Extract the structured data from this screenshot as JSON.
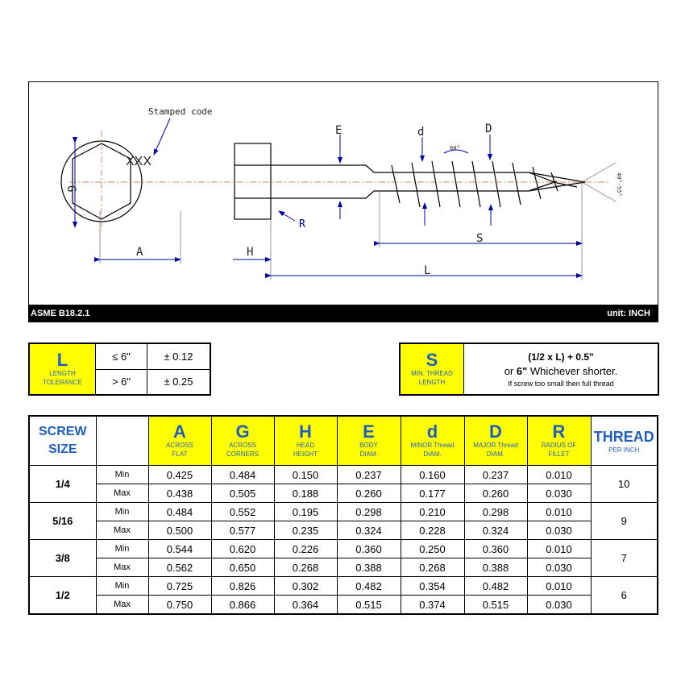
{
  "drawing": {
    "stamped_code": "Stamped code",
    "head_mark": "XXX",
    "labels": {
      "G": "G",
      "A": "A",
      "H": "H",
      "R": "R",
      "E": "E",
      "d": "d",
      "D": "D",
      "S": "S",
      "L": "L",
      "thread_angle": "60°",
      "point_angle": "40°-55°"
    },
    "standard": "ASME B18.2.1",
    "unit": "unit: INCH",
    "line_color": "#0000aa"
  },
  "length_tolerance": {
    "symbol": "L",
    "caption_1": "LENGTH",
    "caption_2": "TOLERANCE",
    "rows": [
      {
        "range": "≤ 6\"",
        "tol": "± 0.12"
      },
      {
        "range": "> 6\"",
        "tol": "± 0.25"
      }
    ]
  },
  "thread_length": {
    "symbol": "S",
    "caption_1": "MIN. THREAD",
    "caption_2": "LENGTH",
    "line1": "(1/2 x L) + 0.5\"",
    "line2_pre": "or ",
    "line2_bold": "6\"",
    "line2_post": " Whichever shorter.",
    "line3": "If screw too small then full thread"
  },
  "table": {
    "size_header_1": "SCREW",
    "size_header_2": "SIZE",
    "columns": [
      {
        "sym": "A",
        "cap1": "ACROSS",
        "cap2": "FLAT"
      },
      {
        "sym": "G",
        "cap1": "ACROSS",
        "cap2": "CORNERS"
      },
      {
        "sym": "H",
        "cap1": "HEAD",
        "cap2": "HEIGHT"
      },
      {
        "sym": "E",
        "cap1": "BODY",
        "cap2": "DIAM."
      },
      {
        "sym": "d",
        "cap1": "MINOR Thread",
        "cap2": "DIAM."
      },
      {
        "sym": "D",
        "cap1": "MAJOR Thread",
        "cap2": "DIAM."
      },
      {
        "sym": "R",
        "cap1": "RADIUS OF",
        "cap2": "FILLET"
      }
    ],
    "thread_header": "THREAD",
    "thread_sub": "PER INCH",
    "min_label": "Min",
    "max_label": "Max",
    "rows": [
      {
        "size": "1/4",
        "min": [
          "0.425",
          "0.484",
          "0.150",
          "0.237",
          "0.160",
          "0.237",
          "0.010"
        ],
        "max": [
          "0.438",
          "0.505",
          "0.188",
          "0.260",
          "0.177",
          "0.260",
          "0.030"
        ],
        "tpi": "10"
      },
      {
        "size": "5/16",
        "min": [
          "0.484",
          "0.552",
          "0.195",
          "0.298",
          "0.210",
          "0.298",
          "0.010"
        ],
        "max": [
          "0.500",
          "0.577",
          "0.235",
          "0.324",
          "0.228",
          "0.324",
          "0.030"
        ],
        "tpi": "9"
      },
      {
        "size": "3/8",
        "min": [
          "0.544",
          "0.620",
          "0.226",
          "0.360",
          "0.250",
          "0.360",
          "0.010"
        ],
        "max": [
          "0.562",
          "0.650",
          "0.268",
          "0.388",
          "0.268",
          "0.388",
          "0.030"
        ],
        "tpi": "7"
      },
      {
        "size": "1/2",
        "min": [
          "0.725",
          "0.826",
          "0.302",
          "0.482",
          "0.354",
          "0.482",
          "0.010"
        ],
        "max": [
          "0.750",
          "0.866",
          "0.364",
          "0.515",
          "0.374",
          "0.515",
          "0.030"
        ],
        "tpi": "6"
      }
    ]
  }
}
